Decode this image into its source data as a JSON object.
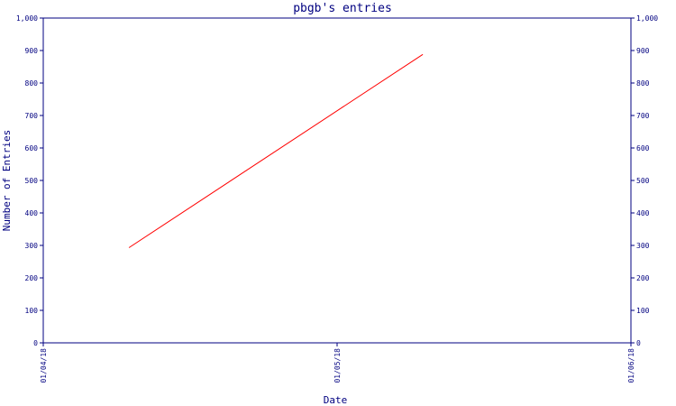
{
  "chart_data": {
    "type": "line",
    "title": "pbgb's entries",
    "xlabel": "Date",
    "ylabel": "Number of Entries",
    "ylim": [
      0,
      1000
    ],
    "y_ticks": [
      0,
      100,
      200,
      300,
      400,
      500,
      600,
      700,
      800,
      900,
      1000
    ],
    "y_tick_labels": [
      "0",
      "100",
      "200",
      "300",
      "400",
      "500",
      "600",
      "700",
      "800",
      "900",
      "1,000"
    ],
    "x_range": [
      "2018-01-04",
      "2018-01-06"
    ],
    "x_ticks": [
      "2018-01-04",
      "2018-01-05",
      "2018-01-06"
    ],
    "x_tick_labels": [
      "01/04/18",
      "01/05/18",
      "01/06/18"
    ],
    "series": [
      {
        "color": "#ff0000",
        "x": [
          "2018-01-04T07:00",
          "2018-01-05T07:00"
        ],
        "y": [
          293,
          888
        ]
      }
    ],
    "grid": false,
    "right_axis_mirror": true
  }
}
